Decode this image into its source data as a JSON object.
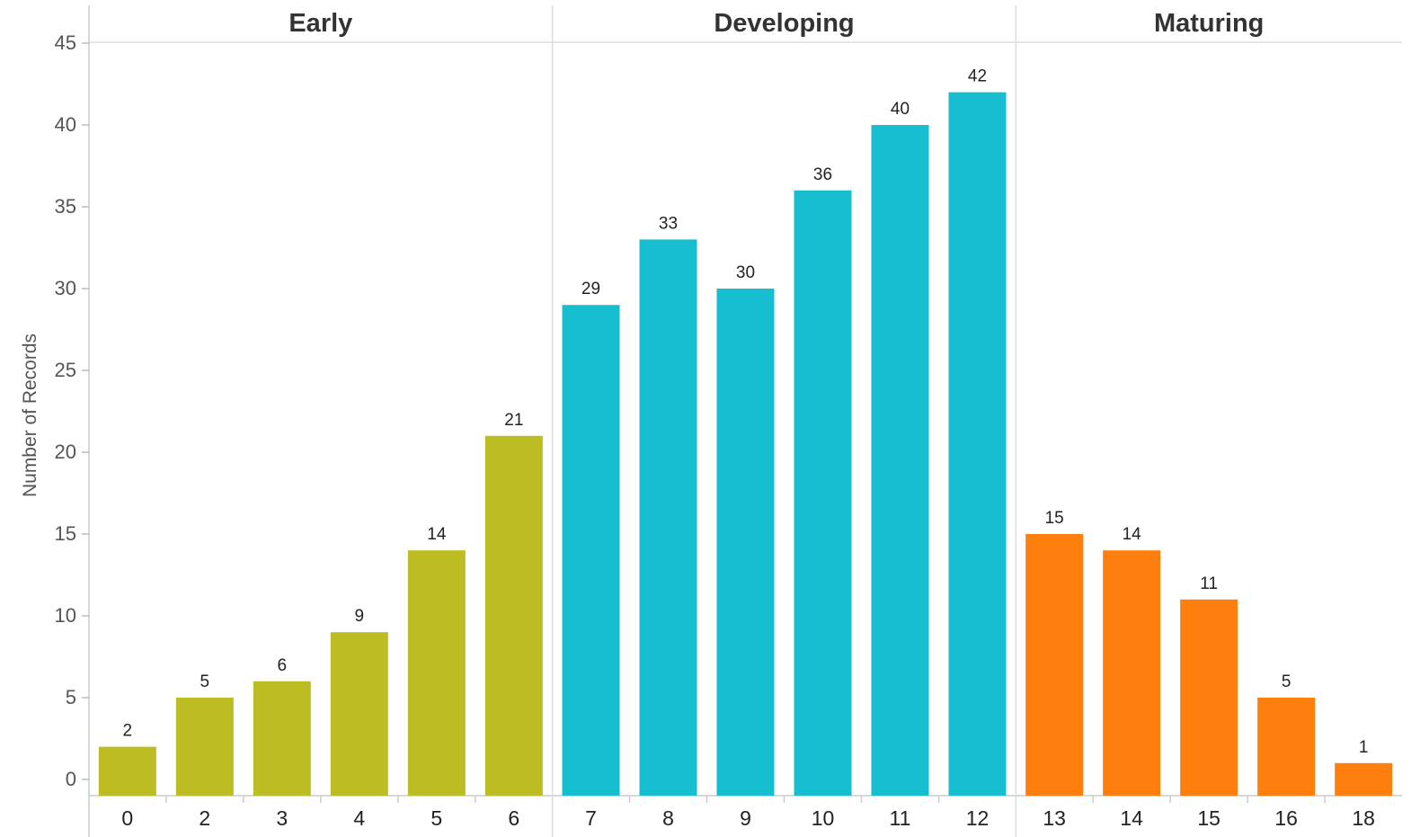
{
  "chart_data": {
    "type": "bar",
    "ylabel": "Number of Records",
    "xlabel": "",
    "ylim": [
      0,
      45
    ],
    "yticks": [
      0,
      5,
      10,
      15,
      20,
      25,
      30,
      35,
      40,
      45
    ],
    "grid": false,
    "legend": "none",
    "groups": [
      {
        "name": "Early",
        "color": "#bcbd22",
        "categories": [
          "0",
          "2",
          "3",
          "4",
          "5",
          "6"
        ],
        "values": [
          2,
          5,
          6,
          9,
          14,
          21
        ]
      },
      {
        "name": "Developing",
        "color": "#17becf",
        "categories": [
          "7",
          "8",
          "9",
          "10",
          "11",
          "12"
        ],
        "values": [
          29,
          33,
          30,
          36,
          40,
          42
        ]
      },
      {
        "name": "Maturing",
        "color": "#ff7f0e",
        "categories": [
          "13",
          "14",
          "15",
          "16",
          "18"
        ],
        "values": [
          15,
          14,
          11,
          5,
          1
        ]
      }
    ]
  }
}
